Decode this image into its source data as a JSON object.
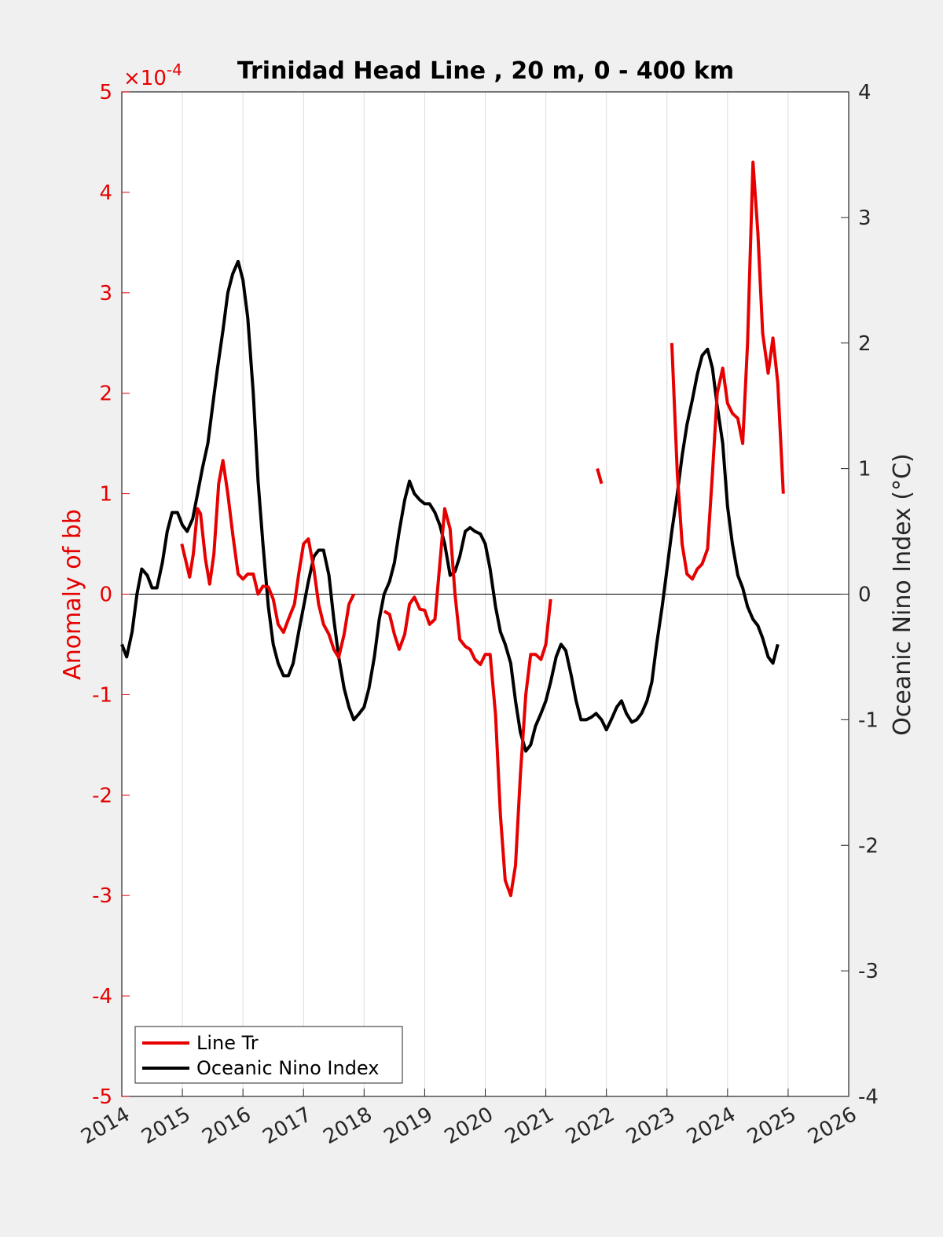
{
  "chart_data": {
    "type": "line",
    "title": "Trinidad Head Line , 20 m, 0 - 400 km",
    "xlabel": "",
    "xlim": [
      2014,
      2026
    ],
    "xticks": [
      "2014",
      "2015",
      "2016",
      "2017",
      "2018",
      "2019",
      "2020",
      "2021",
      "2022",
      "2023",
      "2024",
      "2025",
      "2026"
    ],
    "ylabel_left": "Anomaly of bb",
    "ylim_left": [
      -5,
      5
    ],
    "yticks_left": [
      "-5",
      "-4",
      "-3",
      "-2",
      "-1",
      "0",
      "1",
      "2",
      "3",
      "4",
      "5"
    ],
    "left_exponent": "×10",
    "left_exponent_power": "-4",
    "ylabel_right": "Oceanic Nino Index (°C)",
    "ylim_right": [
      -4,
      4
    ],
    "yticks_right": [
      "-4",
      "-3",
      "-2",
      "-1",
      "0",
      "1",
      "2",
      "3",
      "4"
    ],
    "grid": "vertical",
    "legend_position": "bottom-left",
    "series": [
      {
        "name": "Line Tr",
        "axis": "left",
        "color": "#e60000",
        "segments": [
          [
            [
              2014.99,
              0.5
            ],
            [
              2015.05,
              0.35
            ],
            [
              2015.12,
              0.17
            ],
            [
              2015.18,
              0.4
            ],
            [
              2015.25,
              0.85
            ],
            [
              2015.3,
              0.8
            ],
            [
              2015.38,
              0.35
            ],
            [
              2015.45,
              0.1
            ],
            [
              2015.52,
              0.4
            ],
            [
              2015.6,
              1.1
            ],
            [
              2015.67,
              1.33
            ],
            [
              2015.75,
              1.0
            ],
            [
              2015.83,
              0.6
            ],
            [
              2015.92,
              0.2
            ],
            [
              2016.0,
              0.15
            ],
            [
              2016.08,
              0.2
            ],
            [
              2016.17,
              0.2
            ],
            [
              2016.25,
              0.0
            ],
            [
              2016.33,
              0.08
            ],
            [
              2016.42,
              0.07
            ],
            [
              2016.5,
              -0.05
            ],
            [
              2016.58,
              -0.3
            ],
            [
              2016.67,
              -0.38
            ],
            [
              2016.75,
              -0.25
            ],
            [
              2016.85,
              -0.1
            ],
            [
              2016.92,
              0.2
            ],
            [
              2017.0,
              0.5
            ],
            [
              2017.08,
              0.55
            ],
            [
              2017.17,
              0.25
            ],
            [
              2017.25,
              -0.1
            ],
            [
              2017.33,
              -0.3
            ],
            [
              2017.42,
              -0.4
            ],
            [
              2017.5,
              -0.55
            ],
            [
              2017.58,
              -0.63
            ],
            [
              2017.67,
              -0.4
            ],
            [
              2017.75,
              -0.1
            ],
            [
              2017.83,
              0.0
            ]
          ],
          [
            [
              2018.33,
              -0.17
            ],
            [
              2018.42,
              -0.2
            ],
            [
              2018.5,
              -0.4
            ],
            [
              2018.58,
              -0.55
            ],
            [
              2018.67,
              -0.4
            ],
            [
              2018.75,
              -0.1
            ],
            [
              2018.83,
              -0.03
            ],
            [
              2018.92,
              -0.15
            ],
            [
              2019.0,
              -0.16
            ],
            [
              2019.08,
              -0.3
            ],
            [
              2019.17,
              -0.25
            ],
            [
              2019.25,
              0.3
            ],
            [
              2019.33,
              0.85
            ],
            [
              2019.42,
              0.65
            ],
            [
              2019.5,
              0.0
            ],
            [
              2019.58,
              -0.45
            ],
            [
              2019.67,
              -0.52
            ],
            [
              2019.75,
              -0.55
            ],
            [
              2019.83,
              -0.65
            ],
            [
              2019.92,
              -0.7
            ],
            [
              2020.0,
              -0.6
            ],
            [
              2020.08,
              -0.6
            ],
            [
              2020.17,
              -1.2
            ],
            [
              2020.25,
              -2.2
            ],
            [
              2020.33,
              -2.85
            ],
            [
              2020.42,
              -3.0
            ],
            [
              2020.5,
              -2.7
            ],
            [
              2020.58,
              -1.8
            ],
            [
              2020.67,
              -1.0
            ],
            [
              2020.75,
              -0.6
            ],
            [
              2020.83,
              -0.6
            ],
            [
              2020.92,
              -0.65
            ],
            [
              2021.0,
              -0.5
            ],
            [
              2021.08,
              -0.05
            ]
          ],
          [
            [
              2021.85,
              1.25
            ],
            [
              2021.92,
              1.1
            ]
          ],
          [
            [
              2023.08,
              2.5
            ],
            [
              2023.17,
              1.2
            ],
            [
              2023.25,
              0.5
            ],
            [
              2023.33,
              0.2
            ],
            [
              2023.42,
              0.15
            ],
            [
              2023.5,
              0.25
            ],
            [
              2023.58,
              0.3
            ],
            [
              2023.67,
              0.45
            ],
            [
              2023.75,
              1.2
            ],
            [
              2023.83,
              2.0
            ],
            [
              2023.92,
              2.25
            ],
            [
              2024.0,
              1.9
            ],
            [
              2024.08,
              1.8
            ],
            [
              2024.17,
              1.75
            ],
            [
              2024.25,
              1.5
            ],
            [
              2024.33,
              2.5
            ],
            [
              2024.42,
              4.3
            ],
            [
              2024.5,
              3.6
            ],
            [
              2024.58,
              2.6
            ],
            [
              2024.67,
              2.2
            ],
            [
              2024.75,
              2.55
            ],
            [
              2024.83,
              2.1
            ],
            [
              2024.92,
              1.0
            ]
          ]
        ]
      },
      {
        "name": "Oceanic Nino Index",
        "axis": "right",
        "color": "#000000",
        "segments": [
          [
            [
              2014.0,
              -0.4
            ],
            [
              2014.08,
              -0.5
            ],
            [
              2014.17,
              -0.3
            ],
            [
              2014.25,
              0.0
            ],
            [
              2014.33,
              0.2
            ],
            [
              2014.42,
              0.15
            ],
            [
              2014.5,
              0.05
            ],
            [
              2014.58,
              0.05
            ],
            [
              2014.67,
              0.25
            ],
            [
              2014.75,
              0.5
            ],
            [
              2014.83,
              0.65
            ],
            [
              2014.92,
              0.65
            ],
            [
              2015.0,
              0.55
            ],
            [
              2015.08,
              0.5
            ],
            [
              2015.17,
              0.6
            ],
            [
              2015.25,
              0.8
            ],
            [
              2015.33,
              1.0
            ],
            [
              2015.42,
              1.2
            ],
            [
              2015.5,
              1.5
            ],
            [
              2015.58,
              1.8
            ],
            [
              2015.67,
              2.1
            ],
            [
              2015.75,
              2.4
            ],
            [
              2015.83,
              2.55
            ],
            [
              2015.92,
              2.65
            ],
            [
              2016.0,
              2.5
            ],
            [
              2016.08,
              2.2
            ],
            [
              2016.17,
              1.6
            ],
            [
              2016.25,
              0.9
            ],
            [
              2016.33,
              0.4
            ],
            [
              2016.42,
              -0.1
            ],
            [
              2016.5,
              -0.4
            ],
            [
              2016.58,
              -0.55
            ],
            [
              2016.67,
              -0.65
            ],
            [
              2016.75,
              -0.65
            ],
            [
              2016.83,
              -0.55
            ],
            [
              2016.92,
              -0.3
            ],
            [
              2017.0,
              -0.1
            ],
            [
              2017.08,
              0.1
            ],
            [
              2017.17,
              0.3
            ],
            [
              2017.25,
              0.35
            ],
            [
              2017.33,
              0.35
            ],
            [
              2017.42,
              0.15
            ],
            [
              2017.5,
              -0.2
            ],
            [
              2017.58,
              -0.5
            ],
            [
              2017.67,
              -0.75
            ],
            [
              2017.75,
              -0.9
            ],
            [
              2017.83,
              -1.0
            ],
            [
              2017.92,
              -0.95
            ],
            [
              2018.0,
              -0.9
            ],
            [
              2018.08,
              -0.75
            ],
            [
              2018.17,
              -0.5
            ],
            [
              2018.25,
              -0.2
            ],
            [
              2018.33,
              0.0
            ],
            [
              2018.42,
              0.1
            ],
            [
              2018.5,
              0.25
            ],
            [
              2018.58,
              0.5
            ],
            [
              2018.67,
              0.75
            ],
            [
              2018.75,
              0.9
            ],
            [
              2018.83,
              0.8
            ],
            [
              2018.92,
              0.75
            ],
            [
              2019.0,
              0.72
            ],
            [
              2019.08,
              0.72
            ],
            [
              2019.17,
              0.65
            ],
            [
              2019.25,
              0.55
            ],
            [
              2019.33,
              0.4
            ],
            [
              2019.42,
              0.15
            ],
            [
              2019.5,
              0.18
            ],
            [
              2019.58,
              0.3
            ],
            [
              2019.67,
              0.5
            ],
            [
              2019.75,
              0.53
            ],
            [
              2019.83,
              0.5
            ],
            [
              2019.92,
              0.48
            ],
            [
              2020.0,
              0.4
            ],
            [
              2020.08,
              0.2
            ],
            [
              2020.17,
              -0.1
            ],
            [
              2020.25,
              -0.3
            ],
            [
              2020.33,
              -0.4
            ],
            [
              2020.42,
              -0.55
            ],
            [
              2020.5,
              -0.85
            ],
            [
              2020.58,
              -1.1
            ],
            [
              2020.67,
              -1.25
            ],
            [
              2020.75,
              -1.2
            ],
            [
              2020.83,
              -1.05
            ],
            [
              2020.92,
              -0.95
            ],
            [
              2021.0,
              -0.85
            ],
            [
              2021.08,
              -0.7
            ],
            [
              2021.17,
              -0.5
            ],
            [
              2021.25,
              -0.4
            ],
            [
              2021.33,
              -0.45
            ],
            [
              2021.42,
              -0.65
            ],
            [
              2021.5,
              -0.85
            ],
            [
              2021.58,
              -1.0
            ],
            [
              2021.67,
              -1.0
            ],
            [
              2021.75,
              -0.98
            ],
            [
              2021.83,
              -0.95
            ],
            [
              2021.92,
              -1.0
            ],
            [
              2022.0,
              -1.08
            ],
            [
              2022.08,
              -1.0
            ],
            [
              2022.17,
              -0.9
            ],
            [
              2022.25,
              -0.85
            ],
            [
              2022.33,
              -0.95
            ],
            [
              2022.42,
              -1.02
            ],
            [
              2022.5,
              -1.0
            ],
            [
              2022.58,
              -0.95
            ],
            [
              2022.67,
              -0.85
            ],
            [
              2022.75,
              -0.7
            ],
            [
              2022.83,
              -0.4
            ],
            [
              2022.92,
              -0.1
            ],
            [
              2023.0,
              0.2
            ],
            [
              2023.08,
              0.5
            ],
            [
              2023.17,
              0.8
            ],
            [
              2023.25,
              1.1
            ],
            [
              2023.33,
              1.35
            ],
            [
              2023.42,
              1.55
            ],
            [
              2023.5,
              1.75
            ],
            [
              2023.58,
              1.9
            ],
            [
              2023.67,
              1.95
            ],
            [
              2023.75,
              1.8
            ],
            [
              2023.83,
              1.5
            ],
            [
              2023.92,
              1.2
            ],
            [
              2024.0,
              0.7
            ],
            [
              2024.08,
              0.4
            ],
            [
              2024.17,
              0.15
            ],
            [
              2024.25,
              0.05
            ],
            [
              2024.33,
              -0.1
            ],
            [
              2024.42,
              -0.2
            ],
            [
              2024.5,
              -0.25
            ],
            [
              2024.58,
              -0.35
            ],
            [
              2024.67,
              -0.5
            ],
            [
              2024.75,
              -0.55
            ],
            [
              2024.83,
              -0.4
            ]
          ]
        ]
      }
    ]
  }
}
